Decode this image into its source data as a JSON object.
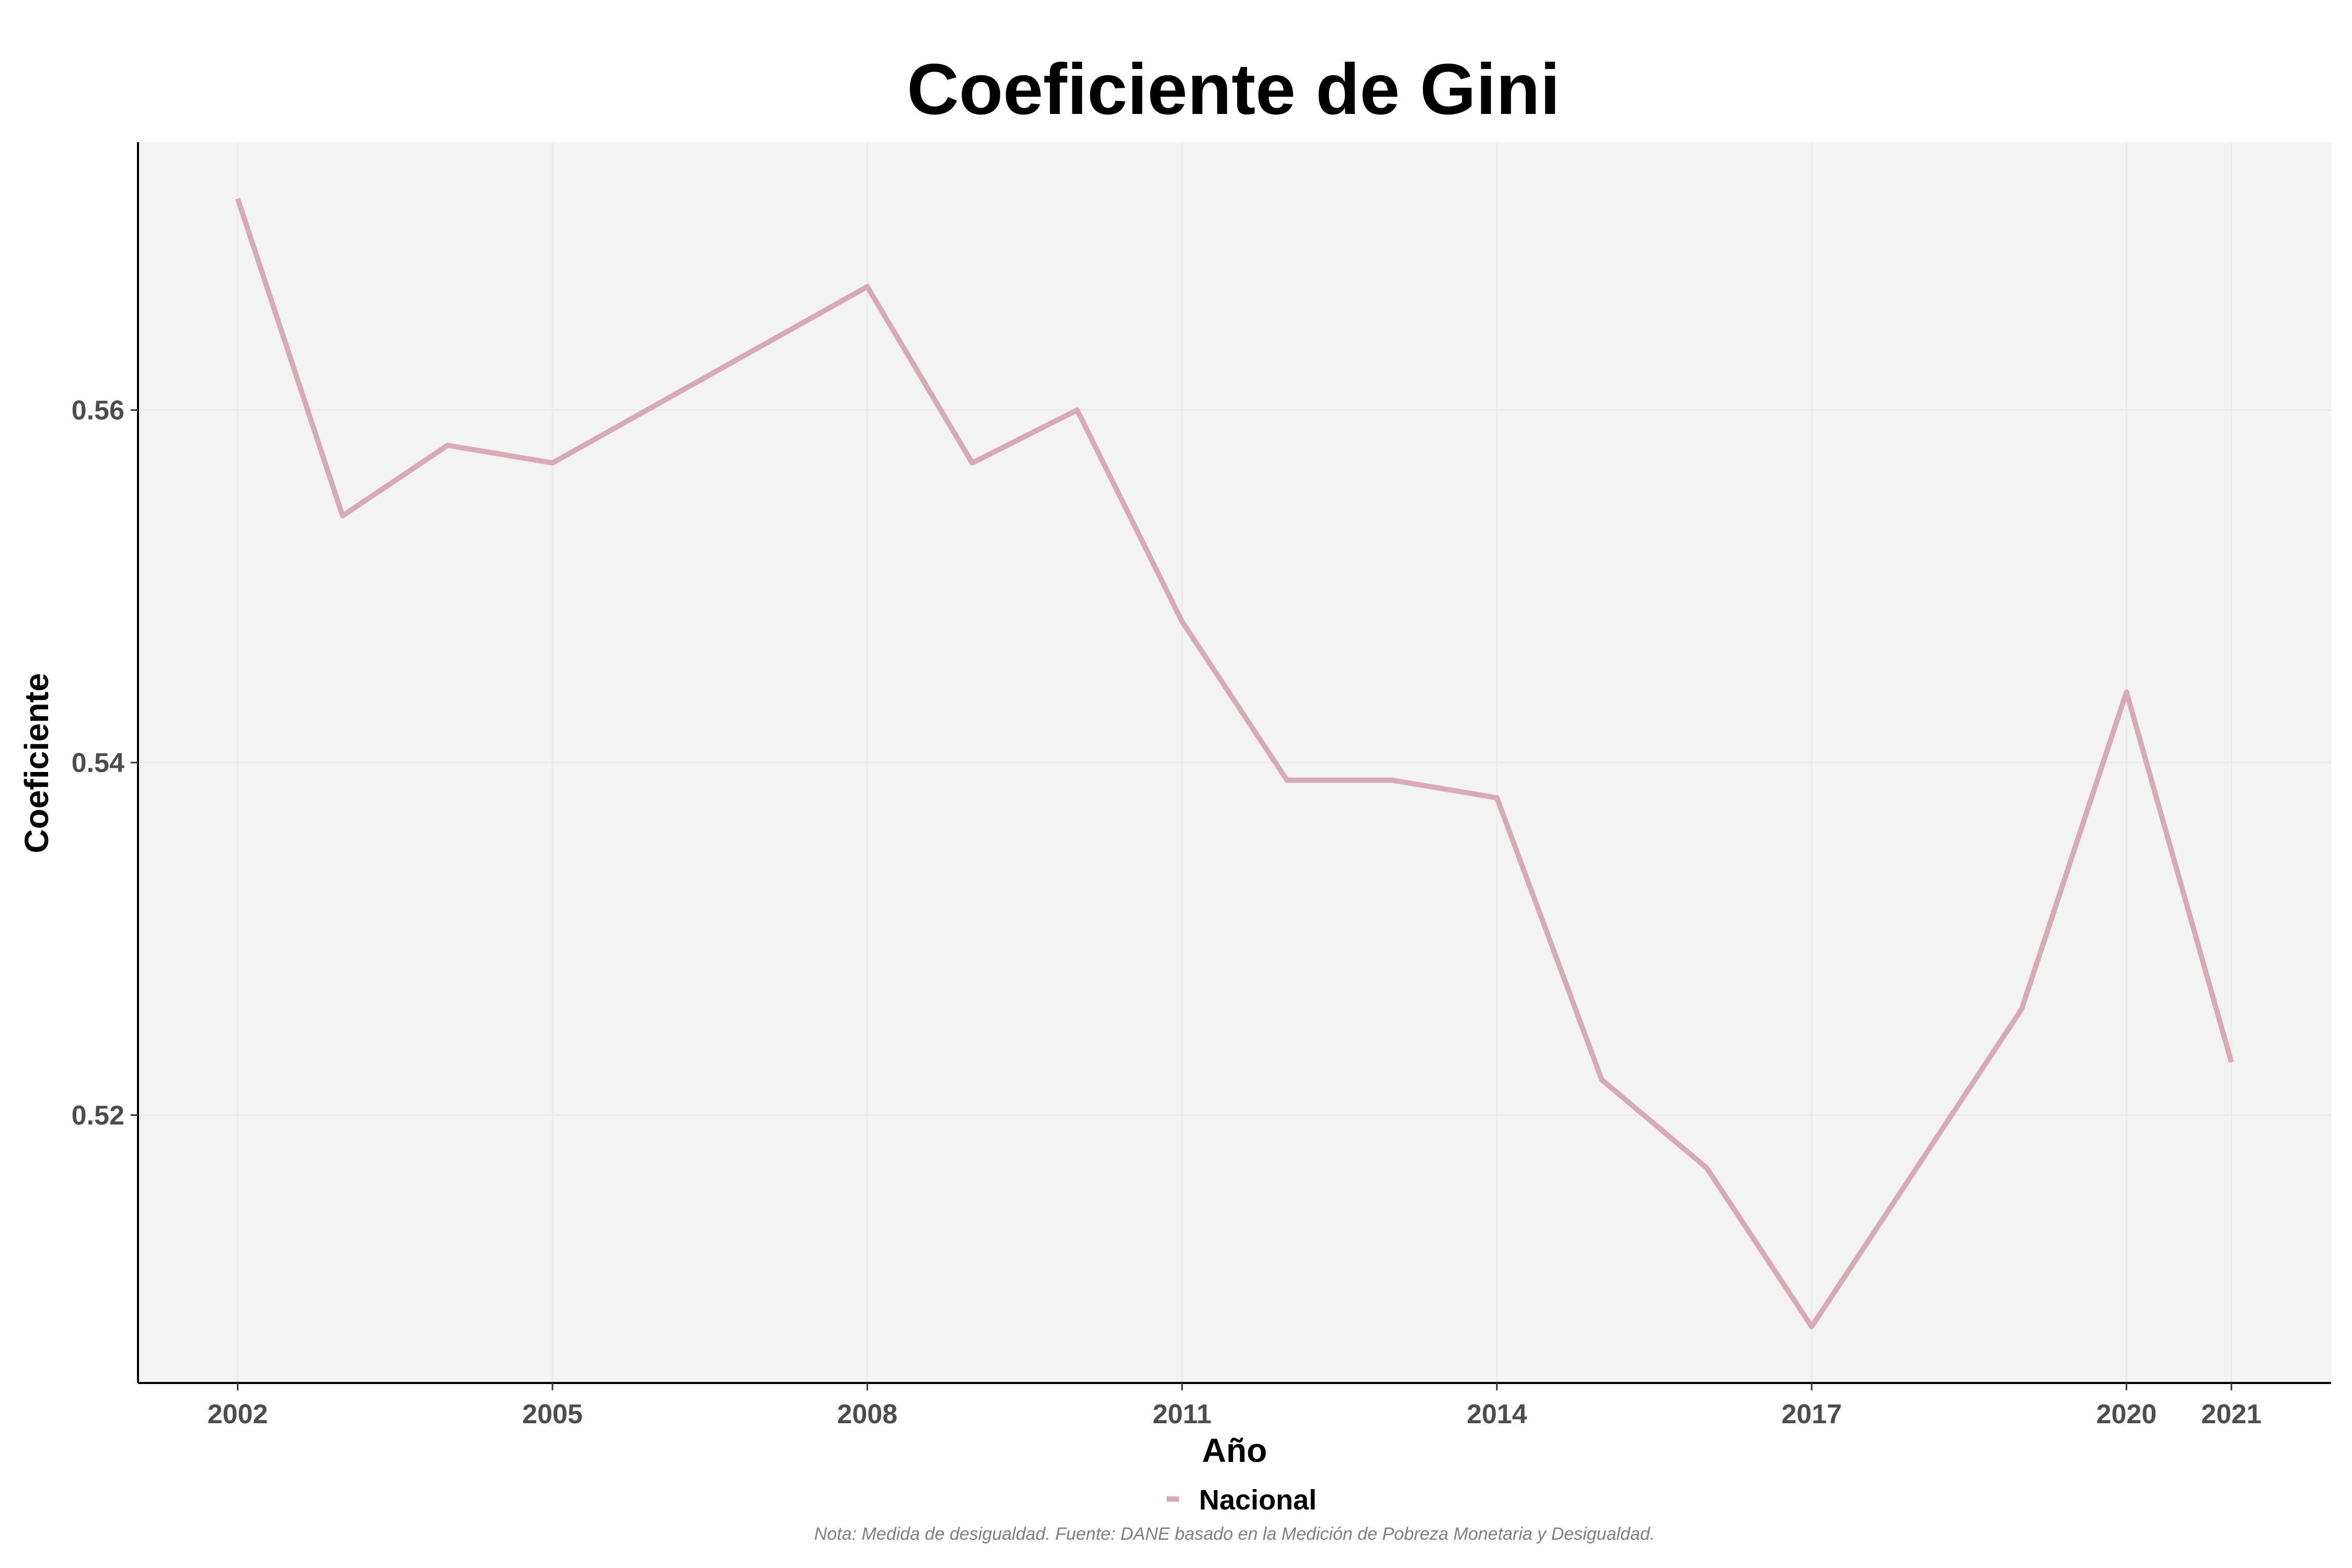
{
  "chart_data": {
    "type": "line",
    "title": "Coeficiente de Gini",
    "xlabel": "Año",
    "ylabel": "Coeficiente",
    "x_ticks": [
      2002,
      2005,
      2008,
      2011,
      2014,
      2017,
      2020,
      2021
    ],
    "y_ticks": [
      "0.52",
      "0.54",
      "0.56"
    ],
    "xlim": [
      2001.05,
      2021.95
    ],
    "ylim": [
      0.5048,
      0.5752
    ],
    "grid": true,
    "legend_position": "bottom",
    "colors": {
      "series": "#d8a9b6",
      "panel": "#f3f3f3",
      "axis": "#000000"
    },
    "series": [
      {
        "name": "Nacional",
        "x": [
          2002,
          2003,
          2004,
          2005,
          2008,
          2009,
          2010,
          2011,
          2012,
          2013,
          2014,
          2015,
          2016,
          2017,
          2019,
          2020,
          2021
        ],
        "values": [
          0.572,
          0.554,
          0.558,
          0.557,
          0.567,
          0.557,
          0.56,
          0.548,
          0.539,
          0.539,
          0.538,
          0.522,
          0.517,
          0.508,
          0.526,
          0.544,
          0.523
        ]
      }
    ],
    "caption": "Nota: Medida de desigualdad. Fuente: DANE basado en la Medición de Pobreza Monetaria y Desigualdad."
  }
}
